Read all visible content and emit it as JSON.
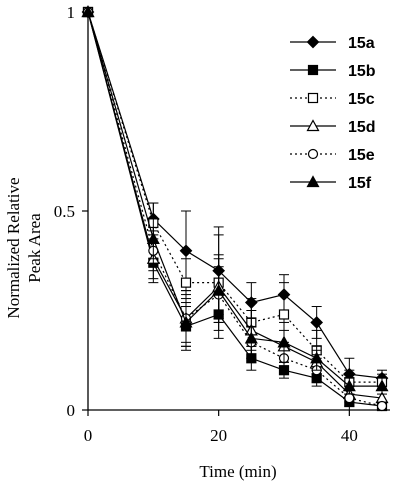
{
  "chart_data": {
    "type": "line",
    "title": "",
    "xlabel": "Time (min)",
    "ylabel_lines": [
      "Normalized Relative",
      "Peak Area"
    ],
    "xlim": [
      0,
      45
    ],
    "ylim": [
      0,
      1
    ],
    "x_ticks": [
      0,
      20,
      40
    ],
    "x_tick_labels": [
      "0",
      "20",
      "40"
    ],
    "y_ticks": [
      0,
      0.5,
      1
    ],
    "y_tick_labels": [
      "0",
      "0.5",
      "1"
    ],
    "grid": false,
    "legend_position": "top-right",
    "x": [
      0,
      10,
      15,
      20,
      25,
      30,
      35,
      40,
      45
    ],
    "series": [
      {
        "name": "15a",
        "marker": "diamond-filled",
        "dash": "solid",
        "values": [
          1.0,
          0.48,
          0.4,
          0.35,
          0.27,
          0.29,
          0.22,
          0.09,
          0.08
        ],
        "errors": [
          0.0,
          0.04,
          0.1,
          0.11,
          0.05,
          0.05,
          0.04,
          0.04,
          0.02
        ]
      },
      {
        "name": "15b",
        "marker": "square-filled",
        "dash": "solid",
        "values": [
          1.0,
          0.37,
          0.21,
          0.24,
          0.13,
          0.1,
          0.08,
          0.02,
          0.01
        ],
        "errors": [
          0.0,
          0.05,
          0.06,
          0.06,
          0.03,
          0.02,
          0.02,
          0.02,
          0.01
        ]
      },
      {
        "name": "15c",
        "marker": "square-open",
        "dash": "dotted",
        "values": [
          1.0,
          0.47,
          0.32,
          0.32,
          0.22,
          0.24,
          0.15,
          0.07,
          0.07
        ],
        "errors": [
          0.0,
          0.05,
          0.06,
          0.12,
          0.06,
          0.08,
          0.05,
          0.03,
          0.02
        ]
      },
      {
        "name": "15d",
        "marker": "triangle-open",
        "dash": "solid",
        "values": [
          1.0,
          0.38,
          0.23,
          0.31,
          0.2,
          0.16,
          0.12,
          0.04,
          0.03
        ],
        "errors": [
          0.0,
          0.05,
          0.07,
          0.08,
          0.05,
          0.04,
          0.03,
          0.02,
          0.02
        ]
      },
      {
        "name": "15e",
        "marker": "circle-open",
        "dash": "dotted",
        "values": [
          1.0,
          0.4,
          0.23,
          0.29,
          0.17,
          0.13,
          0.1,
          0.03,
          0.01
        ],
        "errors": [
          0.0,
          0.05,
          0.06,
          0.07,
          0.04,
          0.04,
          0.03,
          0.02,
          0.01
        ]
      },
      {
        "name": "15f",
        "marker": "triangle-filled",
        "dash": "solid",
        "values": [
          1.0,
          0.43,
          0.22,
          0.3,
          0.18,
          0.17,
          0.13,
          0.06,
          0.06
        ],
        "errors": [
          0.0,
          0.05,
          0.06,
          0.08,
          0.05,
          0.05,
          0.03,
          0.02,
          0.02
        ]
      }
    ]
  }
}
